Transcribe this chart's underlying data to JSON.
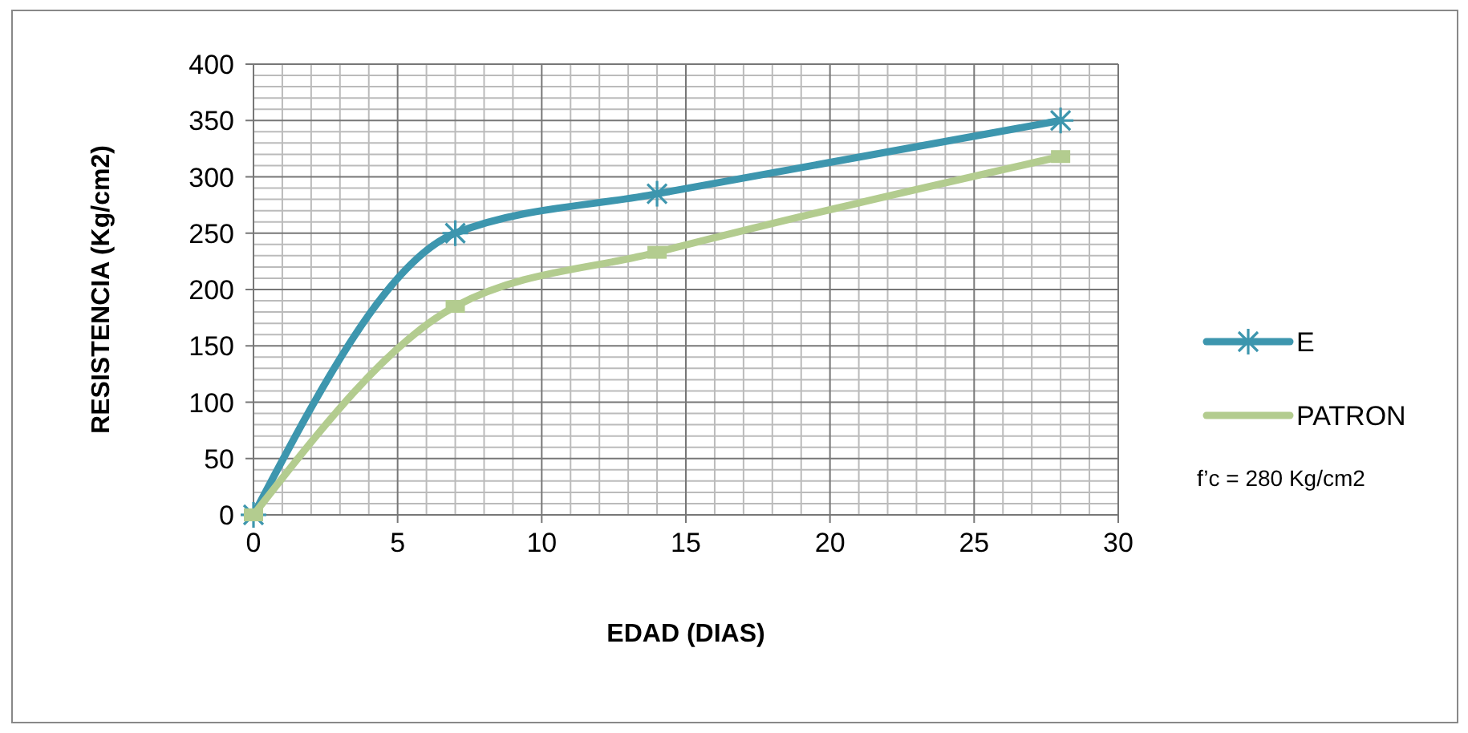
{
  "chart_data": {
    "type": "line",
    "xlabel": "EDAD (DIAS)",
    "ylabel": "RESISTENCIA (Kg/cm2)",
    "x": [
      0,
      7,
      14,
      28
    ],
    "series": [
      {
        "name": "E",
        "color": "#3d96ae",
        "values": [
          0,
          250,
          285,
          350
        ],
        "marker": "cross"
      },
      {
        "name": "PATRON",
        "color": "#b3cc8f",
        "values": [
          0,
          185,
          233,
          318
        ],
        "marker": "square"
      }
    ],
    "xlim": [
      0,
      30
    ],
    "xticks": [
      0,
      5,
      10,
      15,
      20,
      25,
      30
    ],
    "ylim": [
      0,
      400
    ],
    "yticks": [
      0,
      50,
      100,
      150,
      200,
      250,
      300,
      350,
      400
    ],
    "grid": true,
    "legend": "right",
    "annotations": [
      "f’c = 280 Kg/cm2"
    ]
  }
}
